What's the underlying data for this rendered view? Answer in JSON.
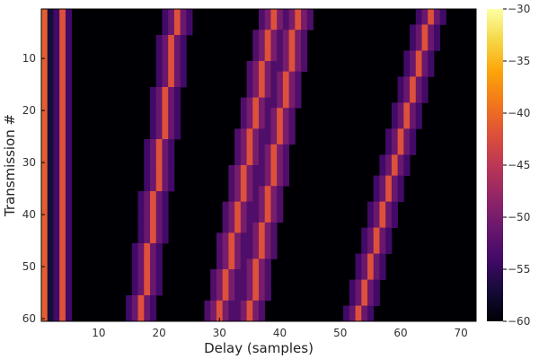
{
  "chart_data": {
    "type": "heatmap",
    "title": "",
    "xlabel": "Delay (samples)",
    "ylabel": "Transmission #",
    "xlim": [
      0.5,
      72.5
    ],
    "ylim": [
      0.5,
      60.5
    ],
    "y_inverted": true,
    "x_ticks": [
      10,
      20,
      30,
      40,
      50,
      60,
      70
    ],
    "y_ticks": [
      10,
      20,
      30,
      40,
      50,
      60
    ],
    "colorbar": {
      "colormap": "inferno",
      "range": [
        -60,
        -30
      ],
      "ticks": [
        -30,
        -35,
        -40,
        -45,
        -50,
        -55,
        -60
      ]
    },
    "background_value": -60,
    "paths": [
      {
        "name": "path-1",
        "delay_at_row_1": 1.0,
        "delay_at_row_60": 1.0,
        "peak": -41,
        "halo": -57,
        "halo_spread": 1
      },
      {
        "name": "path-2",
        "delay_at_row_1": 4.0,
        "delay_at_row_60": 4.0,
        "peak": -42,
        "halo": -54,
        "halo_spread": 1
      },
      {
        "name": "path-3",
        "delay_at_row_1": 23.0,
        "delay_at_row_60": 17.0,
        "peak": -42,
        "halo": -51,
        "halo_spread": 2
      },
      {
        "name": "path-4",
        "delay_at_row_1": 39.0,
        "delay_at_row_60": 30.0,
        "peak": -42,
        "halo": -50,
        "halo_spread": 2
      },
      {
        "name": "path-5",
        "delay_at_row_1": 43.0,
        "delay_at_row_60": 35.0,
        "peak": -42,
        "halo": -50,
        "halo_spread": 2
      },
      {
        "name": "path-6",
        "delay_at_row_1": 65.0,
        "delay_at_row_60": 53.0,
        "peak": -42,
        "halo": -51,
        "halo_spread": 2
      }
    ]
  }
}
